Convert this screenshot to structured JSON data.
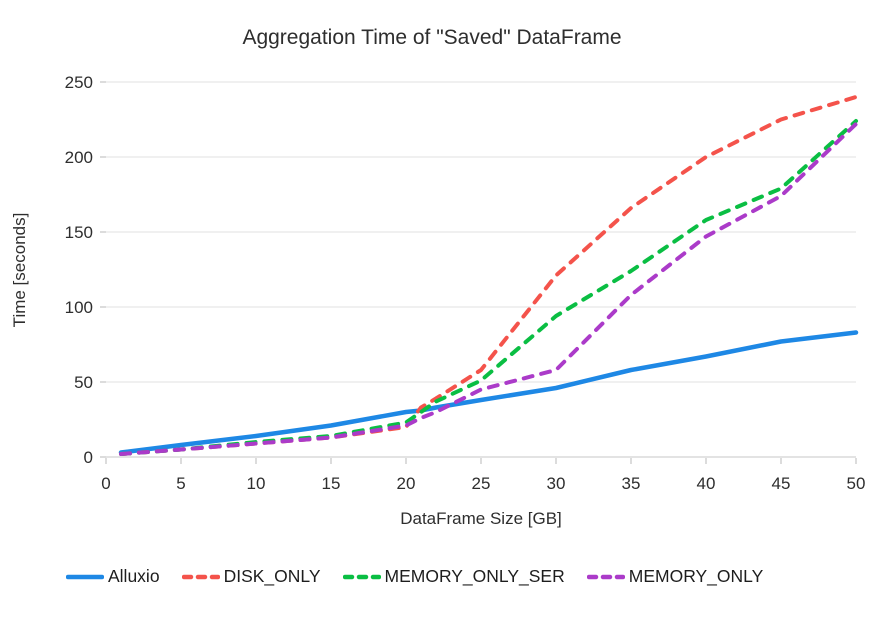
{
  "chart_data": {
    "type": "line",
    "title": "Aggregation Time of \"Saved\" DataFrame",
    "xlabel": "DataFrame Size [GB]",
    "ylabel": "Time [seconds]",
    "xlim": [
      0,
      50
    ],
    "ylim": [
      0,
      250
    ],
    "x_ticks": [
      0,
      5,
      10,
      15,
      20,
      25,
      30,
      35,
      40,
      45,
      50
    ],
    "y_ticks": [
      0,
      50,
      100,
      150,
      200,
      250
    ],
    "grid": "horizontal-only",
    "legend_position": "bottom-left",
    "background_color": "#ffffff",
    "gridline_color": "#e8e8e8",
    "axis_line_color": "#d2d2d2",
    "x": [
      1,
      5,
      10,
      15,
      20,
      21,
      22,
      25,
      30,
      35,
      40,
      45,
      50
    ],
    "series": [
      {
        "name": "Alluxio",
        "color": "#1E88E5",
        "style": "solid",
        "values": [
          3,
          8,
          14,
          21,
          30,
          31,
          33,
          38,
          46,
          58,
          67,
          77,
          83
        ]
      },
      {
        "name": "DISK_ONLY",
        "color": "#F4534B",
        "style": "dashed",
        "values": [
          2,
          5,
          9,
          13,
          20,
          33,
          39,
          58,
          121,
          166,
          200,
          225,
          240
        ]
      },
      {
        "name": "MEMORY_ONLY_SER",
        "color": "#0ABE43",
        "style": "dashed",
        "values": [
          2,
          5,
          10,
          14,
          23,
          30,
          37,
          51,
          94,
          124,
          158,
          179,
          224
        ]
      },
      {
        "name": "MEMORY_ONLY",
        "color": "#AB3BC9",
        "style": "dashed",
        "values": [
          2,
          5,
          9,
          13,
          21,
          26,
          30,
          45,
          58,
          108,
          147,
          174,
          222
        ]
      }
    ]
  }
}
